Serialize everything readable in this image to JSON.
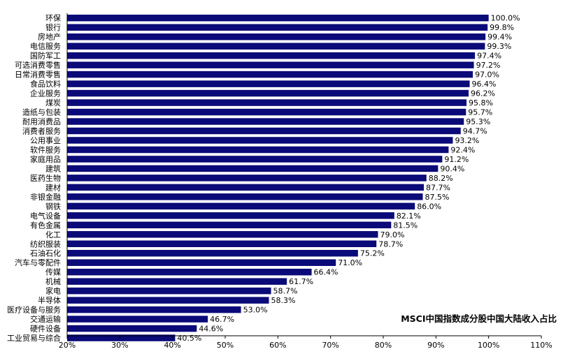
{
  "chart_data": {
    "type": "bar",
    "orientation": "horizontal",
    "title": "",
    "legend": "MSCI中国指数成分股中国大陆收入占比",
    "categories": [
      "环保",
      "银行",
      "房地产",
      "电信服务",
      "国防军工",
      "可选消费零售",
      "日常消费零售",
      "食品饮料",
      "企业服务",
      "煤炭",
      "造纸与包装",
      "耐用消费品",
      "消费者服务",
      "公用事业",
      "软件服务",
      "家庭用品",
      "建筑",
      "医药生物",
      "建材",
      "非银金融",
      "钢铁",
      "电气设备",
      "有色金属",
      "化工",
      "纺织服装",
      "石油石化",
      "汽车与零配件",
      "传媒",
      "机械",
      "家电",
      "半导体",
      "医疗设备与服务",
      "交通运输",
      "硬件设备",
      "工业贸易与综合"
    ],
    "values": [
      100.0,
      99.8,
      99.4,
      99.3,
      97.4,
      97.2,
      97.0,
      96.4,
      96.2,
      95.8,
      95.7,
      95.3,
      94.7,
      93.2,
      92.4,
      91.2,
      90.4,
      88.2,
      87.7,
      87.5,
      86.0,
      82.1,
      81.5,
      79.0,
      78.7,
      75.2,
      71.0,
      66.4,
      61.7,
      58.7,
      58.3,
      53.0,
      46.7,
      44.6,
      40.5
    ],
    "value_labels": [
      "100.0%",
      "99.8%",
      "99.4%",
      "99.3%",
      "97.4%",
      "97.2%",
      "97.0%",
      "96.4%",
      "96.2%",
      "95.8%",
      "95.7%",
      "95.3%",
      "94.7%",
      "93.2%",
      "92.4%",
      "91.2%",
      "90.4%",
      "88.2%",
      "87.7%",
      "87.5%",
      "86.0%",
      "82.1%",
      "81.5%",
      "79.0%",
      "78.7%",
      "75.2%",
      "71.0%",
      "66.4%",
      "61.7%",
      "58.7%",
      "58.3%",
      "53.0%",
      "46.7%",
      "44.6%",
      "40.5%"
    ],
    "xlim": [
      20,
      110
    ],
    "x_ticks": [
      20,
      30,
      40,
      50,
      60,
      70,
      80,
      90,
      100,
      110
    ],
    "x_tick_labels": [
      "20%",
      "30%",
      "40%",
      "50%",
      "60%",
      "70%",
      "80%",
      "90%",
      "100%",
      "110%"
    ],
    "grid": false,
    "legend_position": "bottom-right",
    "bar_color": "#0a0a78"
  }
}
